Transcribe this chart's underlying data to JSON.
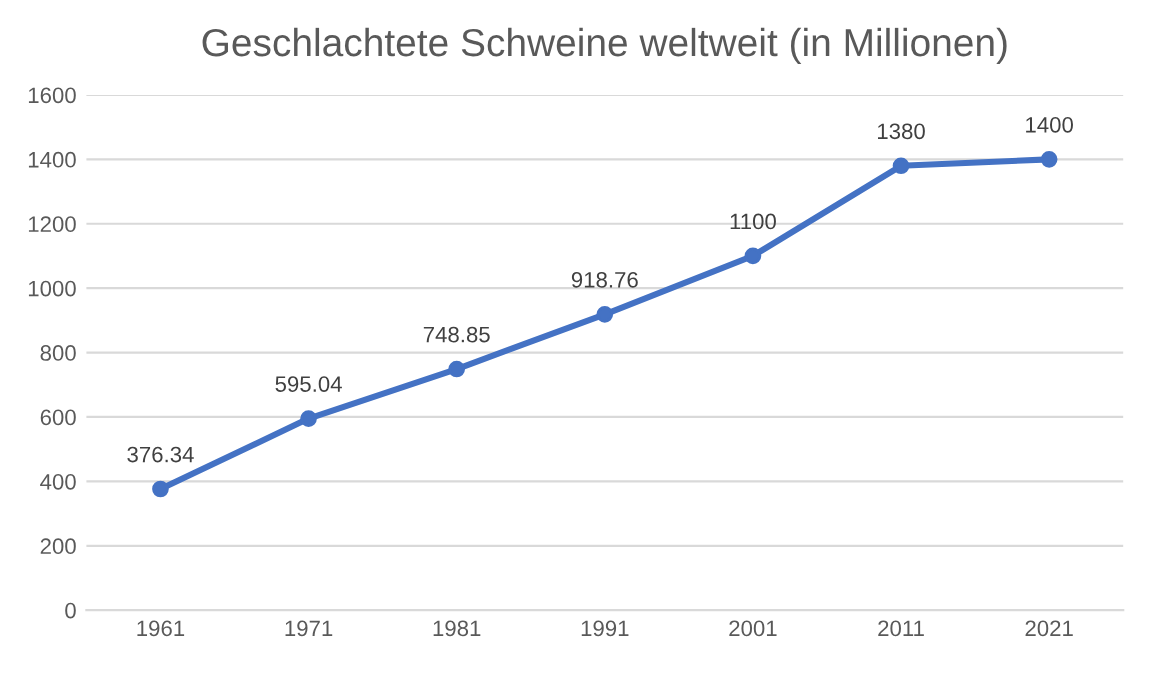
{
  "chart_data": {
    "type": "line",
    "title": "Geschlachtete Schweine weltweit (in Millionen)",
    "categories": [
      "1961",
      "1971",
      "1981",
      "1991",
      "2001",
      "2011",
      "2021"
    ],
    "series": [
      {
        "color": "#4472c4",
        "values": [
          376.34,
          595.04,
          748.85,
          918.76,
          1100,
          1380,
          1400
        ]
      }
    ],
    "ylim": [
      0,
      1600
    ],
    "yticks": [
      0,
      200,
      400,
      600,
      800,
      1000,
      1200,
      1400,
      1600
    ],
    "grid": "y",
    "marker": "circle",
    "line_style": "solid",
    "data_labels": true
  }
}
